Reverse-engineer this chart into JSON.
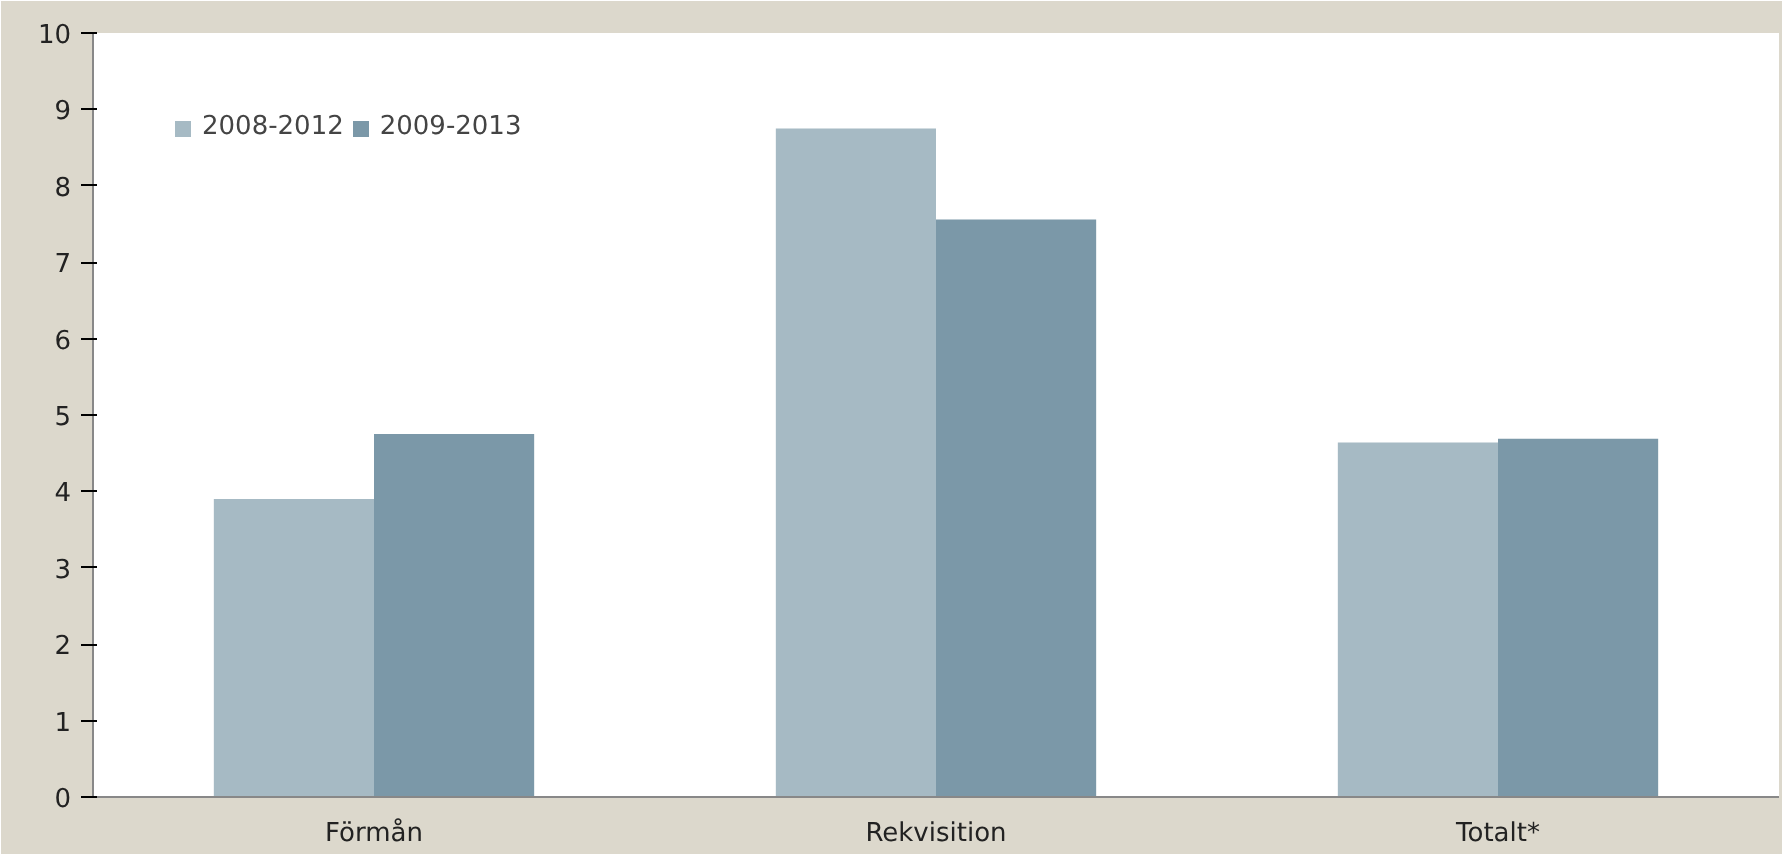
{
  "chart_data": {
    "type": "bar",
    "categories": [
      "Förmån",
      "Rekvisition",
      "Totalt*"
    ],
    "series": [
      {
        "name": "2008-2012",
        "color": "#a6bac4",
        "values": [
          3.9,
          8.75,
          4.64
        ]
      },
      {
        "name": "2009-2013",
        "color": "#7b98a8",
        "values": [
          4.75,
          7.56,
          4.69
        ]
      }
    ],
    "ylim": [
      0,
      10
    ],
    "yticks": [
      0,
      1,
      2,
      3,
      4,
      5,
      6,
      7,
      8,
      9,
      10
    ],
    "grid": false,
    "legend": "top left"
  }
}
